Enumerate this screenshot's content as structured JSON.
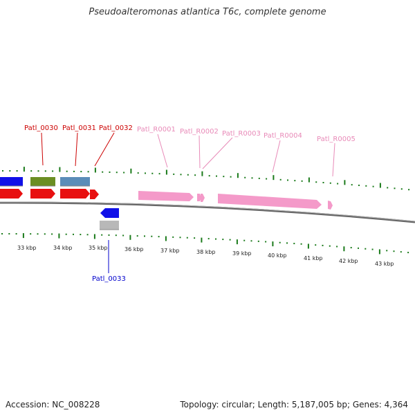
{
  "title": "Pseudoalteromonas atlantica T6c, complete genome",
  "accession": "Accession: NC_008228",
  "topology": "Topology: circular; Length: 5,187,005 bp; Genes: 4,364",
  "colors": {
    "red_gene": "#e81010",
    "pink_gene": "#f49ac9",
    "blue_gene": "#1010e8",
    "olive_gene": "#6b8e23",
    "steel_gene": "#5b8db8",
    "gray_gene": "#b8b8b8",
    "tick_green": "#1a7a1a",
    "red_label": "#cc0000",
    "pink_label": "#e88ab8",
    "blue_label": "#0000cc"
  },
  "labels": {
    "patl_0030": "Patl_0030",
    "patl_0031": "Patl_0031",
    "patl_0032": "Patl_0032",
    "patl_0033": "Patl_0033",
    "patl_r0001": "Patl_R0001",
    "patl_r0002": "Patl_R0002",
    "patl_r0003": "Patl_R0003",
    "patl_r0004": "Patl_R0004",
    "patl_r0005": "Patl_R0005"
  },
  "kbp_ticks": {
    "k33": "33 kbp",
    "k34": "34 kbp",
    "k35": "35 kbp",
    "k36": "36 kbp",
    "k37": "37 kbp",
    "k38": "38 kbp",
    "k39": "39 kbp",
    "k40": "40 kbp",
    "k41": "41 kbp",
    "k42": "42 kbp",
    "k43": "43 kbp"
  }
}
